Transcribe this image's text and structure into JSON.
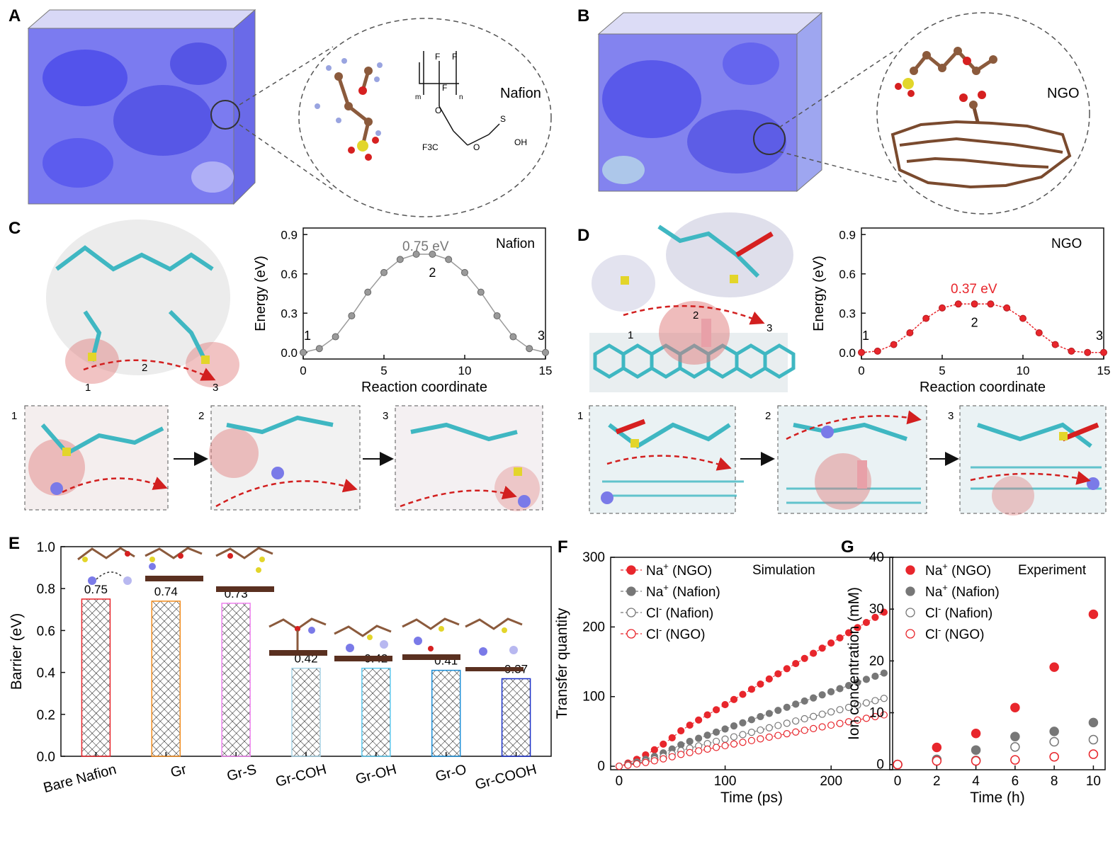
{
  "panels": {
    "A": {
      "letter": "A",
      "zoom_label": "Nafion",
      "chem_labels": {
        "F": "F",
        "m": "m",
        "n": "n",
        "O": "O",
        "F3C": "F3C",
        "SO3H": "S",
        "OH": "OH"
      }
    },
    "B": {
      "letter": "B",
      "zoom_label": "NGO"
    },
    "C": {
      "letter": "C",
      "chart_label": "Nafion",
      "barrier_label": "0.75 eV",
      "steps": [
        "1",
        "2",
        "3"
      ]
    },
    "D": {
      "letter": "D",
      "chart_label": "NGO",
      "barrier_label": "0.37 eV",
      "steps": [
        "1",
        "2",
        "3"
      ]
    },
    "E": {
      "letter": "E"
    },
    "F": {
      "letter": "F",
      "annotation": "Simulation"
    },
    "G": {
      "letter": "G",
      "annotation": "Experiment"
    }
  },
  "colors": {
    "red": "#e8262c",
    "gray": "#666666",
    "blue_mol": "#5a5ae8",
    "cyan_mol": "#3fb7c2",
    "yellow_mol": "#e3d52a",
    "brown_mol": "#8b5a3c"
  },
  "chart_data": [
    {
      "id": "C",
      "type": "line",
      "title": "Nafion",
      "xlabel": "Reaction coordinate",
      "ylabel": "Energy (eV)",
      "xlim": [
        0,
        15
      ],
      "ylim": [
        -0.05,
        0.95
      ],
      "xticks": [
        0,
        5,
        10,
        15
      ],
      "yticks": [
        0.0,
        0.3,
        0.6,
        0.9
      ],
      "ytick_labels": [
        "0.0",
        "0.3",
        "0.6",
        "0.9"
      ],
      "x": [
        0,
        1,
        2,
        3,
        4,
        5,
        6,
        7,
        8,
        9,
        10,
        11,
        12,
        13,
        14,
        15
      ],
      "y": [
        0.0,
        0.03,
        0.12,
        0.28,
        0.46,
        0.61,
        0.71,
        0.75,
        0.75,
        0.71,
        0.61,
        0.46,
        0.28,
        0.12,
        0.03,
        0.0
      ],
      "point_labels": [
        {
          "x": 0,
          "text": "1"
        },
        {
          "x": 8,
          "text": "2"
        },
        {
          "x": 15,
          "text": "3"
        }
      ],
      "color": "#888888"
    },
    {
      "id": "D",
      "type": "line",
      "title": "NGO",
      "xlabel": "Reaction coordinate",
      "ylabel": "Energy (eV)",
      "xlim": [
        0,
        15
      ],
      "ylim": [
        -0.05,
        0.95
      ],
      "xticks": [
        0,
        5,
        10,
        15
      ],
      "yticks": [
        0.0,
        0.3,
        0.6,
        0.9
      ],
      "ytick_labels": [
        "0.0",
        "0.3",
        "0.6",
        "0.9"
      ],
      "x": [
        0,
        1,
        2,
        3,
        4,
        5,
        6,
        7,
        8,
        9,
        10,
        11,
        12,
        13,
        14,
        15
      ],
      "y": [
        0.0,
        0.01,
        0.06,
        0.15,
        0.26,
        0.34,
        0.37,
        0.37,
        0.37,
        0.34,
        0.26,
        0.15,
        0.06,
        0.01,
        0.0,
        0.0
      ],
      "point_labels": [
        {
          "x": 0,
          "text": "1"
        },
        {
          "x": 7,
          "text": "2"
        },
        {
          "x": 15,
          "text": "3"
        }
      ],
      "color": "#e8262c"
    },
    {
      "id": "E",
      "type": "bar",
      "ylabel": "Barrier (eV)",
      "ylim": [
        0,
        1.0
      ],
      "yticks": [
        0.0,
        0.2,
        0.4,
        0.6,
        0.8,
        1.0
      ],
      "ytick_labels": [
        "0.0",
        "0.2",
        "0.4",
        "0.6",
        "0.8",
        "1.0"
      ],
      "categories": [
        "Bare Nafion",
        "Gr",
        "Gr-S",
        "Gr-COH",
        "Gr-OH",
        "Gr-O",
        "Gr-COOH"
      ],
      "values": [
        0.75,
        0.74,
        0.73,
        0.42,
        0.42,
        0.41,
        0.37
      ],
      "value_labels": [
        "0.75",
        "0.74",
        "0.73",
        "0.42",
        "0.42",
        "0.41",
        "0.37"
      ],
      "bar_colors": [
        "#e8262c",
        "#f28c1e",
        "#ee82ee",
        "#a8d4e6",
        "#5cc8ee",
        "#1e90d8",
        "#1a2fc8"
      ]
    },
    {
      "id": "F",
      "type": "scatter",
      "xlabel": "Time (ps)",
      "ylabel": "Transfer quantity",
      "xlim": [
        -8,
        258
      ],
      "ylim": [
        -5,
        300
      ],
      "xticks": [
        0,
        100,
        200
      ],
      "yticks": [
        0,
        100,
        200,
        300
      ],
      "legend_position": "top-left",
      "series": [
        {
          "name": "Na+ (NGO)",
          "ion": "Na",
          "sup": "+",
          "tag": " (NGO)",
          "style": "filled-red",
          "slope": 0.885,
          "t0": 0
        },
        {
          "name": "Na+ (Nafion)",
          "ion": "Na",
          "sup": "+",
          "tag": " (Nafion)",
          "style": "filled-gray",
          "slope": 0.535,
          "t0": 0
        },
        {
          "name": "Cl- (Nafion)",
          "ion": "Cl",
          "sup": "-",
          "tag": " (Nafion)",
          "style": "open-gray",
          "slope": 0.39,
          "t0": 0
        },
        {
          "name": "Cl- (NGO)",
          "ion": "Cl",
          "sup": "-",
          "tag": " (NGO)",
          "style": "open-red",
          "slope": 0.295,
          "t0": 0
        }
      ],
      "x_step": 8.33,
      "n_points": 31
    },
    {
      "id": "G",
      "type": "scatter",
      "xlabel": "Time (h)",
      "ylabel": "Ion concentration (mM)",
      "xlim": [
        -0.4,
        10.6
      ],
      "ylim": [
        -1,
        40
      ],
      "xticks": [
        0,
        2,
        4,
        6,
        8,
        10
      ],
      "yticks": [
        0,
        10,
        20,
        30,
        40
      ],
      "legend_position": "top-left",
      "x": [
        0,
        2,
        4,
        6,
        8,
        10
      ],
      "series": [
        {
          "name": "Na+ (NGO)",
          "ion": "Na",
          "sup": "+",
          "tag": " (NGO)",
          "style": "filled-red",
          "values": [
            0,
            3.3,
            6.0,
            11.0,
            18.8,
            29.0
          ]
        },
        {
          "name": "Na+ (Nafion)",
          "ion": "Na",
          "sup": "+",
          "tag": " (Nafion)",
          "style": "filled-gray",
          "values": [
            0,
            1.0,
            2.8,
            5.4,
            6.4,
            8.1
          ]
        },
        {
          "name": "Cl- (Nafion)",
          "ion": "Cl",
          "sup": "-",
          "tag": " (Nafion)",
          "style": "open-gray",
          "values": [
            0,
            0.8,
            0.8,
            3.4,
            4.4,
            4.8
          ]
        },
        {
          "name": "Cl- (NGO)",
          "ion": "Cl",
          "sup": "-",
          "tag": " (NGO)",
          "style": "open-red",
          "values": [
            0,
            0.7,
            0.7,
            0.9,
            1.5,
            2.0
          ]
        }
      ]
    }
  ]
}
